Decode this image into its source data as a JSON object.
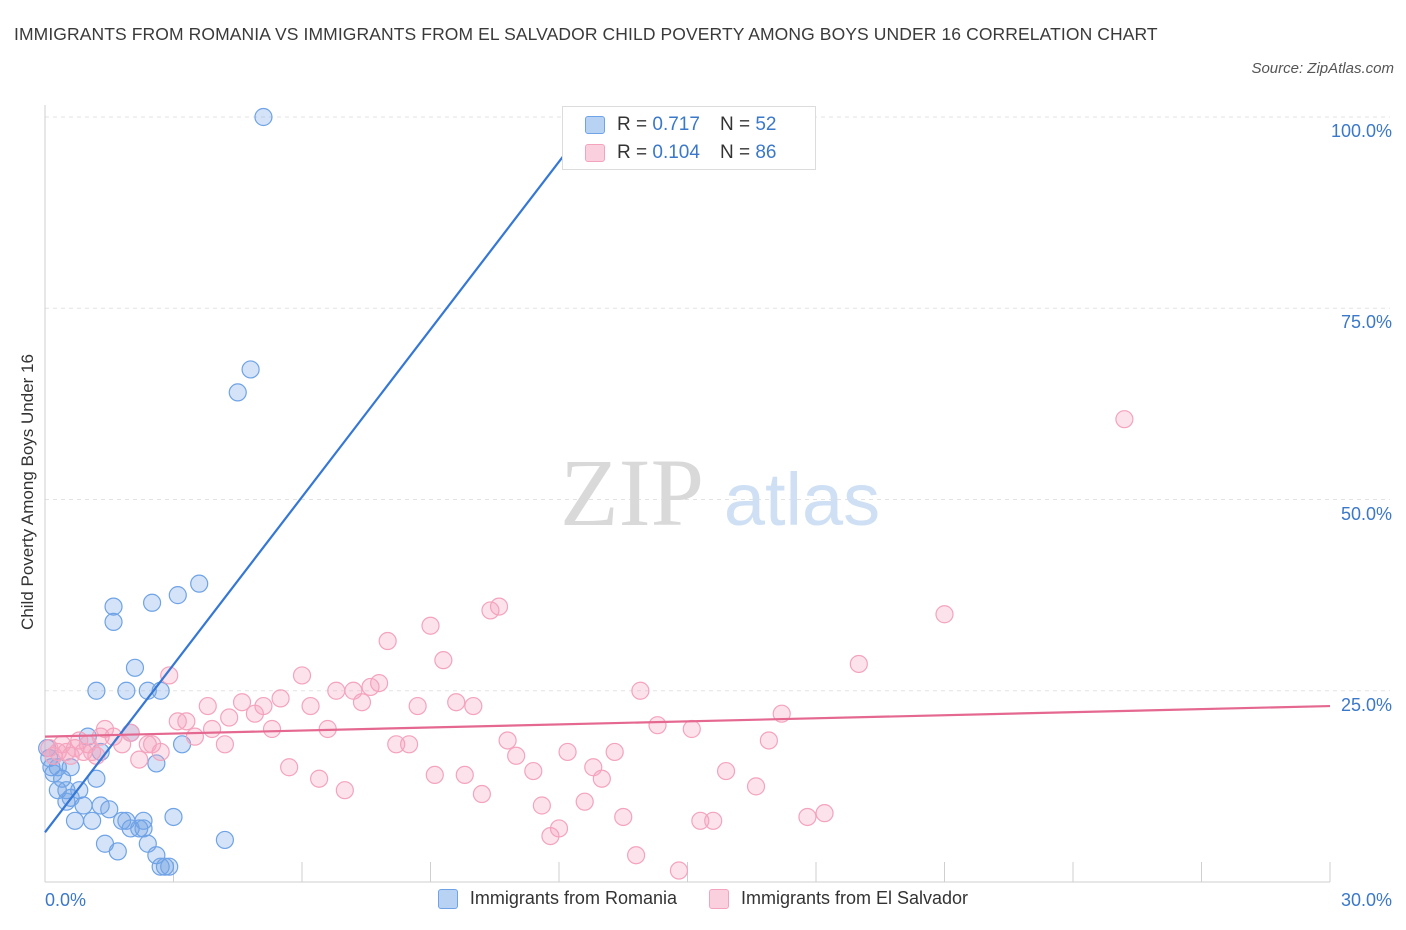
{
  "title": "IMMIGRANTS FROM ROMANIA VS IMMIGRANTS FROM EL SALVADOR CHILD POVERTY AMONG BOYS UNDER 16 CORRELATION CHART",
  "source": "Source: ZipAtlas.com",
  "watermark": {
    "zip": "ZIP",
    "atlas": "atlas"
  },
  "legend_stats": [
    {
      "r_label": "R =",
      "r_value": "0.717",
      "n_label": "N =",
      "n_value": "52"
    },
    {
      "r_label": "R =",
      "r_value": "0.104",
      "n_label": "N =",
      "n_value": "86"
    }
  ],
  "chart_data": {
    "type": "scatter",
    "title": "IMMIGRANTS FROM ROMANIA VS IMMIGRANTS FROM EL SALVADOR CHILD POVERTY AMONG BOYS UNDER 16 CORRELATION CHART",
    "xlabel": "",
    "ylabel": "Child Poverty Among Boys Under 16",
    "xlim": [
      0,
      30
    ],
    "ylim": [
      0,
      100
    ],
    "x_ticks": [
      "0.0%",
      "30.0%"
    ],
    "y_ticks": [
      "25.0%",
      "50.0%",
      "75.0%",
      "100.0%"
    ],
    "y_tick_values": [
      25,
      50,
      75,
      100
    ],
    "grid": true,
    "legend_position": "bottom",
    "series": [
      {
        "name": "Immigrants from Romania",
        "color": "#6fa3e6",
        "trend_color": "#3577d4",
        "trend": [
          [
            0,
            6.5
          ],
          [
            12.8,
            100
          ]
        ],
        "points": [
          [
            0.05,
            17.5
          ],
          [
            0.1,
            16.2
          ],
          [
            0.15,
            15.0
          ],
          [
            0.2,
            14.2
          ],
          [
            0.3,
            12.0
          ],
          [
            0.4,
            13.5
          ],
          [
            0.5,
            12.0
          ],
          [
            0.5,
            10.5
          ],
          [
            0.6,
            11.0
          ],
          [
            0.6,
            15.0
          ],
          [
            0.7,
            8.0
          ],
          [
            0.8,
            12.0
          ],
          [
            0.9,
            10.0
          ],
          [
            1.0,
            19.0
          ],
          [
            1.1,
            8.0
          ],
          [
            1.2,
            13.5
          ],
          [
            1.2,
            25.0
          ],
          [
            1.3,
            17.0
          ],
          [
            1.3,
            10.0
          ],
          [
            1.4,
            5.0
          ],
          [
            1.5,
            9.5
          ],
          [
            1.6,
            36.0
          ],
          [
            1.6,
            34.0
          ],
          [
            1.7,
            4.0
          ],
          [
            1.8,
            8.0
          ],
          [
            1.9,
            8.0
          ],
          [
            1.9,
            25.0
          ],
          [
            2.0,
            19.5
          ],
          [
            2.0,
            7.0
          ],
          [
            2.1,
            28.0
          ],
          [
            2.2,
            7.0
          ],
          [
            2.3,
            8.0
          ],
          [
            2.3,
            7.0
          ],
          [
            2.4,
            5.0
          ],
          [
            2.4,
            25.0
          ],
          [
            2.5,
            36.5
          ],
          [
            2.6,
            3.5
          ],
          [
            2.6,
            15.5
          ],
          [
            2.7,
            2.0
          ],
          [
            2.7,
            25.0
          ],
          [
            2.8,
            2.0
          ],
          [
            2.9,
            2.0
          ],
          [
            3.0,
            8.5
          ],
          [
            3.1,
            37.5
          ],
          [
            3.2,
            18.0
          ],
          [
            3.6,
            39.0
          ],
          [
            4.2,
            5.5
          ],
          [
            4.5,
            64.0
          ],
          [
            4.8,
            67.0
          ],
          [
            5.1,
            100.0
          ],
          [
            12.8,
            100.0
          ],
          [
            0.3,
            15.0
          ]
        ]
      },
      {
        "name": "Immigrants from El Salvador",
        "color": "#f4a3bd",
        "trend_color": "#e46890",
        "trend": [
          [
            0,
            19.0
          ],
          [
            30,
            23.0
          ]
        ],
        "points": [
          [
            0.1,
            17.5
          ],
          [
            0.2,
            16.5
          ],
          [
            0.3,
            17.0
          ],
          [
            0.4,
            18.0
          ],
          [
            0.5,
            17.0
          ],
          [
            0.6,
            16.5
          ],
          [
            0.7,
            17.5
          ],
          [
            0.8,
            18.5
          ],
          [
            0.9,
            17.0
          ],
          [
            1.0,
            18.0
          ],
          [
            1.1,
            17.0
          ],
          [
            1.2,
            16.5
          ],
          [
            1.3,
            19.0
          ],
          [
            1.4,
            20.0
          ],
          [
            1.6,
            19.0
          ],
          [
            1.8,
            18.0
          ],
          [
            2.0,
            19.5
          ],
          [
            2.2,
            16.0
          ],
          [
            2.4,
            18.0
          ],
          [
            2.5,
            18.0
          ],
          [
            2.7,
            17.0
          ],
          [
            2.9,
            27.0
          ],
          [
            3.1,
            21.0
          ],
          [
            3.3,
            21.0
          ],
          [
            3.5,
            19.0
          ],
          [
            3.8,
            23.0
          ],
          [
            3.9,
            20.0
          ],
          [
            4.2,
            18.0
          ],
          [
            4.3,
            21.5
          ],
          [
            4.6,
            23.5
          ],
          [
            4.9,
            22.0
          ],
          [
            5.1,
            23.0
          ],
          [
            5.3,
            20.0
          ],
          [
            5.5,
            24.0
          ],
          [
            5.7,
            15.0
          ],
          [
            6.0,
            27.0
          ],
          [
            6.2,
            23.0
          ],
          [
            6.4,
            13.5
          ],
          [
            6.6,
            20.0
          ],
          [
            6.8,
            25.0
          ],
          [
            7.0,
            12.0
          ],
          [
            7.2,
            25.0
          ],
          [
            7.4,
            23.5
          ],
          [
            7.6,
            25.5
          ],
          [
            7.8,
            26.0
          ],
          [
            8.0,
            31.5
          ],
          [
            8.2,
            18.0
          ],
          [
            8.5,
            18.0
          ],
          [
            8.7,
            23.0
          ],
          [
            9.0,
            33.5
          ],
          [
            9.1,
            14.0
          ],
          [
            9.3,
            29.0
          ],
          [
            9.6,
            23.5
          ],
          [
            9.8,
            14.0
          ],
          [
            10.0,
            23.0
          ],
          [
            10.2,
            11.5
          ],
          [
            10.4,
            35.5
          ],
          [
            10.6,
            36.0
          ],
          [
            10.8,
            18.5
          ],
          [
            11.0,
            16.5
          ],
          [
            11.4,
            14.5
          ],
          [
            11.6,
            10.0
          ],
          [
            11.8,
            6.0
          ],
          [
            12.0,
            7.0
          ],
          [
            12.2,
            17.0
          ],
          [
            12.6,
            10.5
          ],
          [
            12.8,
            15.0
          ],
          [
            13.0,
            13.5
          ],
          [
            13.3,
            17.0
          ],
          [
            13.5,
            8.5
          ],
          [
            13.8,
            3.5
          ],
          [
            13.9,
            25.0
          ],
          [
            14.3,
            20.5
          ],
          [
            14.8,
            1.5
          ],
          [
            15.1,
            20.0
          ],
          [
            15.3,
            8.0
          ],
          [
            15.6,
            8.0
          ],
          [
            15.9,
            14.5
          ],
          [
            16.6,
            12.5
          ],
          [
            16.9,
            18.5
          ],
          [
            17.2,
            22.0
          ],
          [
            17.8,
            8.5
          ],
          [
            18.2,
            9.0
          ],
          [
            19.0,
            28.5
          ],
          [
            21.0,
            35.0
          ],
          [
            25.2,
            60.5
          ]
        ]
      }
    ]
  }
}
